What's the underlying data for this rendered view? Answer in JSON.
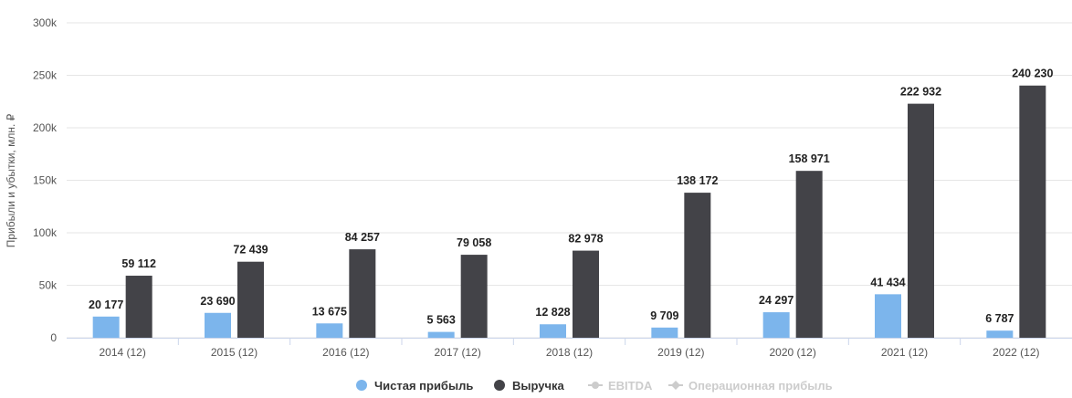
{
  "chart_data": {
    "type": "bar",
    "title": "",
    "ylabel": "Прибыли и убытки, млн. ₽",
    "xlabel": "",
    "ylim": [
      0,
      300000
    ],
    "yticks": [
      0,
      50000,
      100000,
      150000,
      200000,
      250000,
      300000
    ],
    "ytick_labels": [
      "0",
      "50k",
      "100k",
      "150k",
      "200k",
      "250k",
      "300k"
    ],
    "grid": true,
    "categories": [
      "2014 (12)",
      "2015 (12)",
      "2016 (12)",
      "2017 (12)",
      "2018 (12)",
      "2019 (12)",
      "2020 (12)",
      "2021 (12)",
      "2022 (12)"
    ],
    "series": [
      {
        "name": "Чистая прибыль",
        "color": "#7cb5ec",
        "values": [
          20177,
          23690,
          13675,
          5563,
          12828,
          9709,
          24297,
          41434,
          6787
        ],
        "labels": [
          "20 177",
          "23 690",
          "13 675",
          "5 563",
          "12 828",
          "9 709",
          "24 297",
          "41 434",
          "6 787"
        ]
      },
      {
        "name": "Выручка",
        "color": "#434348",
        "values": [
          59112,
          72439,
          84257,
          79058,
          82978,
          138172,
          158971,
          222932,
          240230
        ],
        "labels": [
          "59 112",
          "72 439",
          "84 257",
          "79 058",
          "82 978",
          "138 172",
          "158 971",
          "222 932",
          "240 230"
        ]
      }
    ],
    "legend": {
      "placement": "bottom-center",
      "items": [
        {
          "name": "Чистая прибыль",
          "color": "#7cb5ec",
          "active": true,
          "marker": "circle"
        },
        {
          "name": "Выручка",
          "color": "#434348",
          "active": true,
          "marker": "circle"
        },
        {
          "name": "EBITDA",
          "color": "#cccccc",
          "active": false,
          "marker": "line-circle"
        },
        {
          "name": "Операционная прибыль",
          "color": "#cccccc",
          "active": false,
          "marker": "line-diamond"
        }
      ]
    }
  }
}
